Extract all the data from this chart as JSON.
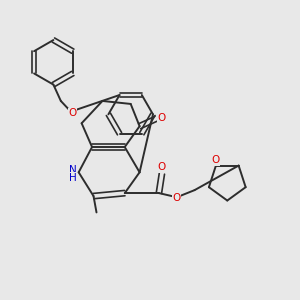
{
  "background_color": "#e8e8e8",
  "bond_color": "#2d2d2d",
  "oxygen_color": "#dd0000",
  "nitrogen_color": "#0000cc",
  "figsize": [
    3.0,
    3.0
  ],
  "dpi": 100,
  "xlim": [
    0.0,
    1.0
  ],
  "ylim": [
    0.0,
    1.0
  ]
}
